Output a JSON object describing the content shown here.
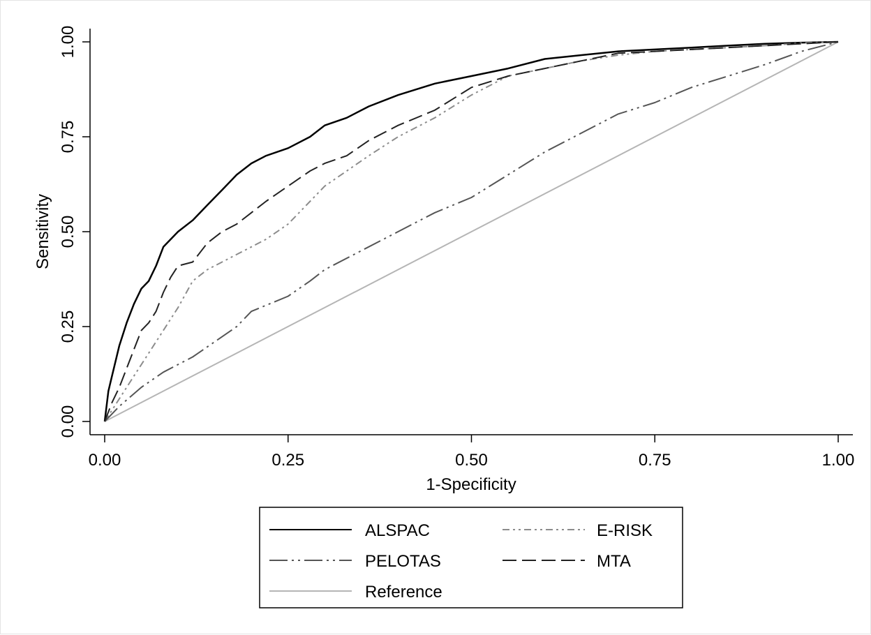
{
  "chart_data": {
    "type": "line",
    "title": "",
    "xlabel": "1-Specificity",
    "ylabel": "Sensitivity",
    "xlim": [
      0,
      1
    ],
    "ylim": [
      0,
      1
    ],
    "xticks": [
      "0.00",
      "0.25",
      "0.50",
      "0.75",
      "1.00"
    ],
    "yticks": [
      "0.00",
      "0.25",
      "0.50",
      "0.75",
      "1.00"
    ],
    "grid": false,
    "legend_position": "bottom",
    "series": [
      {
        "name": "ALSPAC",
        "color": "#000000",
        "dash": "solid",
        "x": [
          0,
          0.005,
          0.01,
          0.02,
          0.03,
          0.04,
          0.05,
          0.06,
          0.07,
          0.08,
          0.09,
          0.1,
          0.12,
          0.14,
          0.16,
          0.18,
          0.2,
          0.22,
          0.25,
          0.28,
          0.3,
          0.33,
          0.36,
          0.4,
          0.45,
          0.5,
          0.55,
          0.6,
          0.65,
          0.7,
          0.75,
          0.8,
          0.85,
          0.9,
          0.95,
          1.0
        ],
        "y": [
          0,
          0.08,
          0.12,
          0.2,
          0.26,
          0.31,
          0.35,
          0.37,
          0.41,
          0.46,
          0.48,
          0.5,
          0.53,
          0.57,
          0.61,
          0.65,
          0.68,
          0.7,
          0.72,
          0.75,
          0.78,
          0.8,
          0.83,
          0.86,
          0.89,
          0.91,
          0.93,
          0.955,
          0.965,
          0.975,
          0.98,
          0.985,
          0.99,
          0.995,
          0.998,
          1.0
        ]
      },
      {
        "name": "E-RISK",
        "color": "#8c8c8c",
        "dash": "dash-dot-dot",
        "x": [
          0,
          0.01,
          0.02,
          0.04,
          0.06,
          0.08,
          0.1,
          0.12,
          0.14,
          0.16,
          0.18,
          0.2,
          0.22,
          0.25,
          0.28,
          0.3,
          0.33,
          0.36,
          0.4,
          0.45,
          0.5,
          0.55,
          0.6,
          0.65,
          0.7,
          0.75,
          0.8,
          0.85,
          0.9,
          0.95,
          1.0
        ],
        "y": [
          0,
          0.03,
          0.06,
          0.12,
          0.18,
          0.24,
          0.3,
          0.37,
          0.4,
          0.42,
          0.44,
          0.46,
          0.48,
          0.52,
          0.58,
          0.62,
          0.66,
          0.7,
          0.75,
          0.8,
          0.86,
          0.91,
          0.93,
          0.95,
          0.965,
          0.975,
          0.98,
          0.985,
          0.99,
          0.997,
          1.0
        ]
      },
      {
        "name": "PELOTAS",
        "color": "#555555",
        "dash": "long-dash-dot-dot",
        "x": [
          0,
          0.02,
          0.05,
          0.08,
          0.1,
          0.12,
          0.15,
          0.18,
          0.2,
          0.25,
          0.28,
          0.3,
          0.35,
          0.4,
          0.45,
          0.5,
          0.55,
          0.6,
          0.65,
          0.7,
          0.75,
          0.8,
          0.85,
          0.9,
          0.95,
          1.0
        ],
        "y": [
          0,
          0.04,
          0.09,
          0.13,
          0.15,
          0.17,
          0.21,
          0.25,
          0.29,
          0.33,
          0.37,
          0.4,
          0.45,
          0.5,
          0.55,
          0.59,
          0.65,
          0.71,
          0.76,
          0.81,
          0.84,
          0.88,
          0.91,
          0.94,
          0.975,
          1.0
        ]
      },
      {
        "name": "MTA",
        "color": "#222222",
        "dash": "dashed",
        "x": [
          0,
          0.01,
          0.02,
          0.03,
          0.04,
          0.05,
          0.06,
          0.07,
          0.08,
          0.09,
          0.1,
          0.12,
          0.14,
          0.16,
          0.18,
          0.2,
          0.22,
          0.25,
          0.28,
          0.3,
          0.33,
          0.36,
          0.4,
          0.45,
          0.5,
          0.55,
          0.6,
          0.65,
          0.7,
          0.75,
          0.8,
          0.85,
          0.9,
          0.95,
          1.0
        ],
        "y": [
          0,
          0.05,
          0.09,
          0.14,
          0.19,
          0.24,
          0.26,
          0.29,
          0.34,
          0.38,
          0.41,
          0.42,
          0.47,
          0.5,
          0.52,
          0.55,
          0.58,
          0.62,
          0.66,
          0.68,
          0.7,
          0.74,
          0.78,
          0.82,
          0.88,
          0.91,
          0.93,
          0.95,
          0.97,
          0.975,
          0.98,
          0.985,
          0.99,
          0.995,
          1.0
        ]
      },
      {
        "name": "Reference",
        "color": "#b5b5b5",
        "dash": "solid",
        "x": [
          0,
          1
        ],
        "y": [
          0,
          1
        ]
      }
    ]
  }
}
